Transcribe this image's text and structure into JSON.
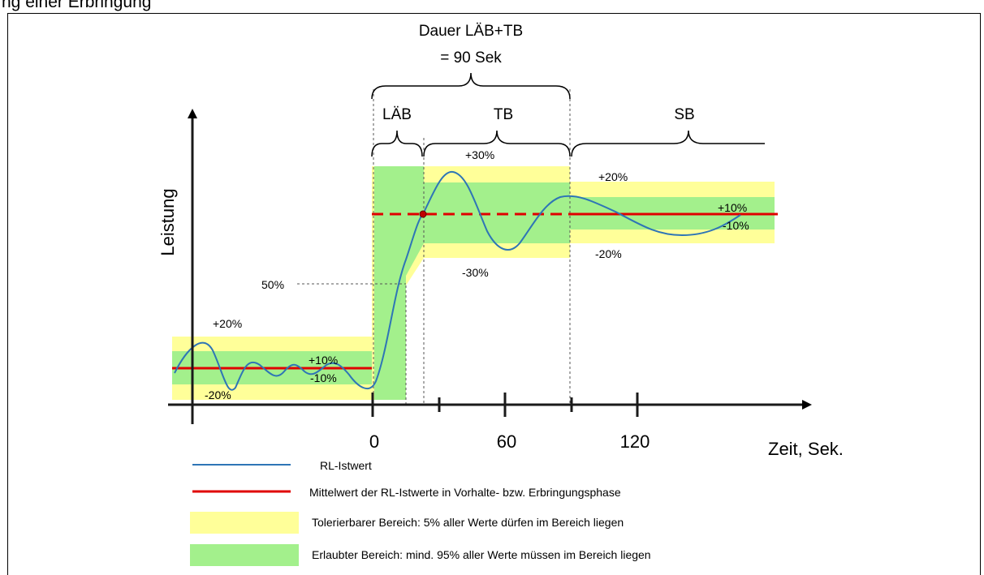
{
  "caption": "ng einer Erbringung",
  "duration": {
    "line1": "Dauer LÄB+TB",
    "line2": "= 90 Sek"
  },
  "phases": {
    "laeb": "LÄB",
    "tb": "TB",
    "sb": "SB"
  },
  "axes": {
    "y_label": "Leistung",
    "x_label": "Zeit, Sek.",
    "x_ticks": [
      "0",
      "60",
      "120"
    ],
    "y_marker": "50%"
  },
  "band_labels": {
    "left_plus20": "+20%",
    "left_plus10": "+10%",
    "left_minus10": "-10%",
    "left_minus20": "-20%",
    "tb_plus30": "+30%",
    "tb_minus30": "-30%",
    "sb_plus20": "+20%",
    "sb_minus20": "-20%",
    "sb_plus10": "+10%",
    "sb_minus10": "-10%"
  },
  "legend": [
    {
      "swatch": "line",
      "color": "#2e75b6",
      "label": "RL-Istwert"
    },
    {
      "swatch": "line",
      "color": "#e00000",
      "label": "Mittelwert der RL-Istwerte in Vorhalte- bzw. Erbringungsphase"
    },
    {
      "swatch": "box",
      "color": "#ffff99",
      "label": "Tolerierbarer Bereich: 5% aller Werte dürfen im Bereich liegen"
    },
    {
      "swatch": "box",
      "color": "#a3f08c",
      "label": "Erlaubter Bereich: mind. 95% aller Werte müssen im Bereich liegen"
    }
  ],
  "colors": {
    "yellow": "#ffff99",
    "green": "#a3f08c",
    "red": "#e00000",
    "blue": "#2e75b6"
  }
}
